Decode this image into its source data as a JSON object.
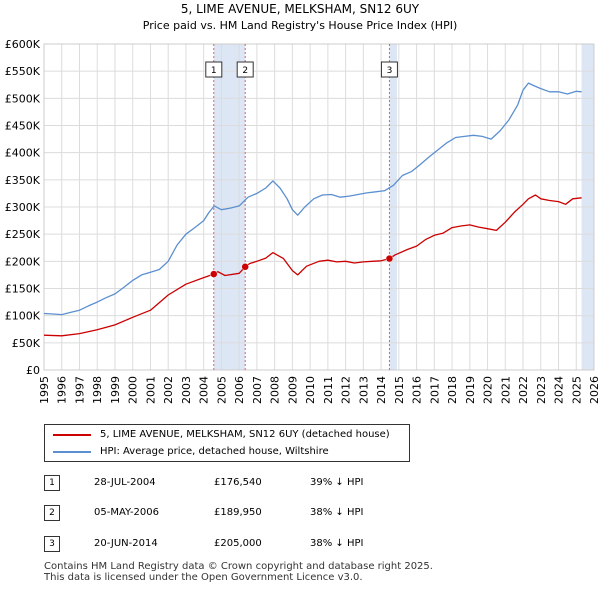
{
  "chart_data": {
    "type": "line",
    "title": "5, LIME AVENUE, MELKSHAM, SN12 6UY",
    "subtitle": "Price paid vs. HM Land Registry's House Price Index (HPI)",
    "xlabel": "",
    "ylabel": "",
    "xlim": [
      1995,
      2026
    ],
    "ylim": [
      0,
      600000
    ],
    "yticks": [
      0,
      50000,
      100000,
      150000,
      200000,
      250000,
      300000,
      350000,
      400000,
      450000,
      500000,
      550000,
      600000
    ],
    "ytick_labels": [
      "£0",
      "£50K",
      "£100K",
      "£150K",
      "£200K",
      "£250K",
      "£300K",
      "£350K",
      "£400K",
      "£450K",
      "£500K",
      "£550K",
      "£600K"
    ],
    "xticks": [
      1995,
      1996,
      1997,
      1998,
      1999,
      2000,
      2001,
      2002,
      2003,
      2004,
      2005,
      2006,
      2007,
      2008,
      2009,
      2010,
      2011,
      2012,
      2013,
      2014,
      2015,
      2016,
      2017,
      2018,
      2019,
      2020,
      2021,
      2022,
      2023,
      2024,
      2025,
      2026
    ],
    "grid": true,
    "colors": {
      "property": "#cc0000",
      "hpi": "#5b8fd0",
      "shade": "#dde6f5",
      "marker_line": "#e06060",
      "grid": "#dcdcdc"
    },
    "series": [
      {
        "name": "5, LIME AVENUE, MELKSHAM, SN12 6UY (detached house)",
        "color": "#cc0000",
        "x": [
          1995,
          1996,
          1997,
          1998,
          1999,
          2000,
          2001,
          2002,
          2003,
          2004,
          2004.57,
          2004.8,
          2005.2,
          2006.0,
          2006.34,
          2006.6,
          2007.0,
          2007.5,
          2007.9,
          2008.5,
          2009.0,
          2009.3,
          2009.8,
          2010.5,
          2011.0,
          2011.5,
          2012.0,
          2012.5,
          2013.0,
          2013.5,
          2014.0,
          2014.47,
          2014.8,
          2015.5,
          2016.0,
          2016.5,
          2017.0,
          2017.5,
          2018.0,
          2018.5,
          2019.0,
          2019.5,
          2020.0,
          2020.5,
          2021.0,
          2021.5,
          2022.0,
          2022.3,
          2022.7,
          2023.0,
          2023.5,
          2024.0,
          2024.4,
          2024.8,
          2025.3
        ],
        "values": [
          64000,
          63000,
          67000,
          74000,
          83000,
          97000,
          110000,
          138000,
          158000,
          170000,
          176540,
          181000,
          174000,
          178000,
          189950,
          196000,
          200000,
          206000,
          216000,
          205000,
          183000,
          175000,
          191000,
          200000,
          202000,
          199000,
          200000,
          197000,
          199000,
          200000,
          201000,
          205000,
          212000,
          222000,
          228000,
          240000,
          248000,
          252000,
          262000,
          265000,
          267000,
          263000,
          260000,
          257000,
          272000,
          290000,
          305000,
          315000,
          322000,
          315000,
          312000,
          310000,
          305000,
          315000,
          317000
        ]
      },
      {
        "name": "HPI: Average price, detached house, Wiltshire",
        "color": "#5b8fd0",
        "x": [
          1995,
          1995.5,
          1996,
          1996.5,
          1997,
          1997.5,
          1998,
          1998.5,
          1999,
          1999.5,
          2000,
          2000.5,
          2001,
          2001.5,
          2002,
          2002.5,
          2003,
          2003.5,
          2004,
          2004.3,
          2004.6,
          2005,
          2005.5,
          2006,
          2006.5,
          2007,
          2007.5,
          2007.9,
          2008.3,
          2008.7,
          2009.0,
          2009.3,
          2009.7,
          2010.2,
          2010.7,
          2011.2,
          2011.7,
          2012.2,
          2012.7,
          2013.2,
          2013.7,
          2014.2,
          2014.7,
          2015.2,
          2015.7,
          2016.2,
          2016.7,
          2017.2,
          2017.7,
          2018.2,
          2018.7,
          2019.2,
          2019.7,
          2020.2,
          2020.7,
          2021.2,
          2021.7,
          2022.0,
          2022.3,
          2022.7,
          2023.0,
          2023.5,
          2024.0,
          2024.5,
          2025.0,
          2025.3
        ],
        "values": [
          104000,
          103000,
          102000,
          106000,
          110000,
          118000,
          125000,
          133000,
          140000,
          152000,
          165000,
          175000,
          180000,
          185000,
          200000,
          230000,
          250000,
          262000,
          275000,
          290000,
          302000,
          295000,
          298000,
          302000,
          318000,
          325000,
          335000,
          348000,
          335000,
          315000,
          295000,
          285000,
          300000,
          315000,
          322000,
          323000,
          318000,
          320000,
          323000,
          326000,
          328000,
          330000,
          340000,
          358000,
          365000,
          378000,
          392000,
          405000,
          418000,
          428000,
          430000,
          432000,
          430000,
          425000,
          440000,
          460000,
          488000,
          515000,
          528000,
          522000,
          518000,
          512000,
          512000,
          508000,
          513000,
          512000
        ]
      }
    ],
    "sale_markers": [
      {
        "label": "1",
        "x": 2004.57,
        "value": 176540
      },
      {
        "label": "2",
        "x": 2006.34,
        "value": 189950
      },
      {
        "label": "3",
        "x": 2014.47,
        "value": 205000
      }
    ],
    "shaded_ranges": [
      [
        2004.57,
        2006.34
      ],
      [
        2014.47,
        2014.9
      ],
      [
        2025.3,
        2026
      ]
    ],
    "legend_position": "below"
  },
  "legend": {
    "property_label": "5, LIME AVENUE, MELKSHAM, SN12 6UY (detached house)",
    "hpi_label": "HPI: Average price, detached house, Wiltshire"
  },
  "sales": [
    {
      "num": "1",
      "date": "28-JUL-2004",
      "price": "£176,540",
      "hpi": "39% ↓ HPI"
    },
    {
      "num": "2",
      "date": "05-MAY-2006",
      "price": "£189,950",
      "hpi": "38% ↓ HPI"
    },
    {
      "num": "3",
      "date": "20-JUN-2014",
      "price": "£205,000",
      "hpi": "38% ↓ HPI"
    }
  ],
  "footer": {
    "line1": "Contains HM Land Registry data © Crown copyright and database right 2025.",
    "line2": "This data is licensed under the Open Government Licence v3.0."
  }
}
